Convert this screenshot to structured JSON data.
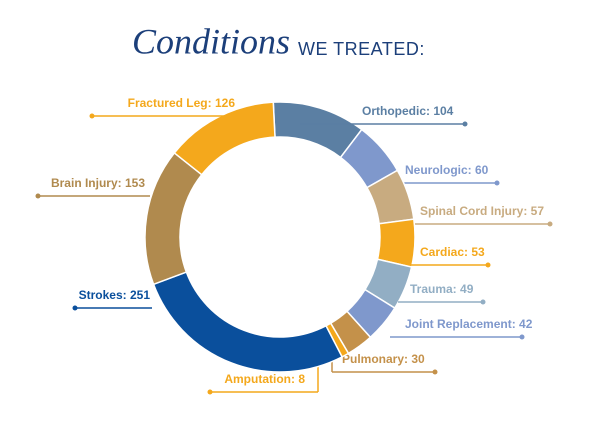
{
  "chart_data": {
    "type": "donut",
    "title": "Conditions",
    "subtitle": "WE TREATED:",
    "value_labels": [
      "Orthopedic: 104",
      "Neurologic: 60",
      "Spinal Cord Injury: 57",
      "Cardiac: 53",
      "Trauma: 49",
      "Joint Replacement: 42",
      "Pulmonary: 30",
      "Amputation: 8",
      "Strokes: 251",
      "Brain Injury: 153",
      "Fractured Leg: 126"
    ],
    "values": [
      104,
      60,
      57,
      53,
      49,
      42,
      30,
      8,
      251,
      153,
      126
    ],
    "colors": [
      "#5b7fa3",
      "#7f98cc",
      "#c8ab80",
      "#f4a81c",
      "#92aec4",
      "#7f98cc",
      "#c4914a",
      "#f4a81c",
      "#0a4f9c",
      "#b08a4e",
      "#f4a81c"
    ]
  }
}
